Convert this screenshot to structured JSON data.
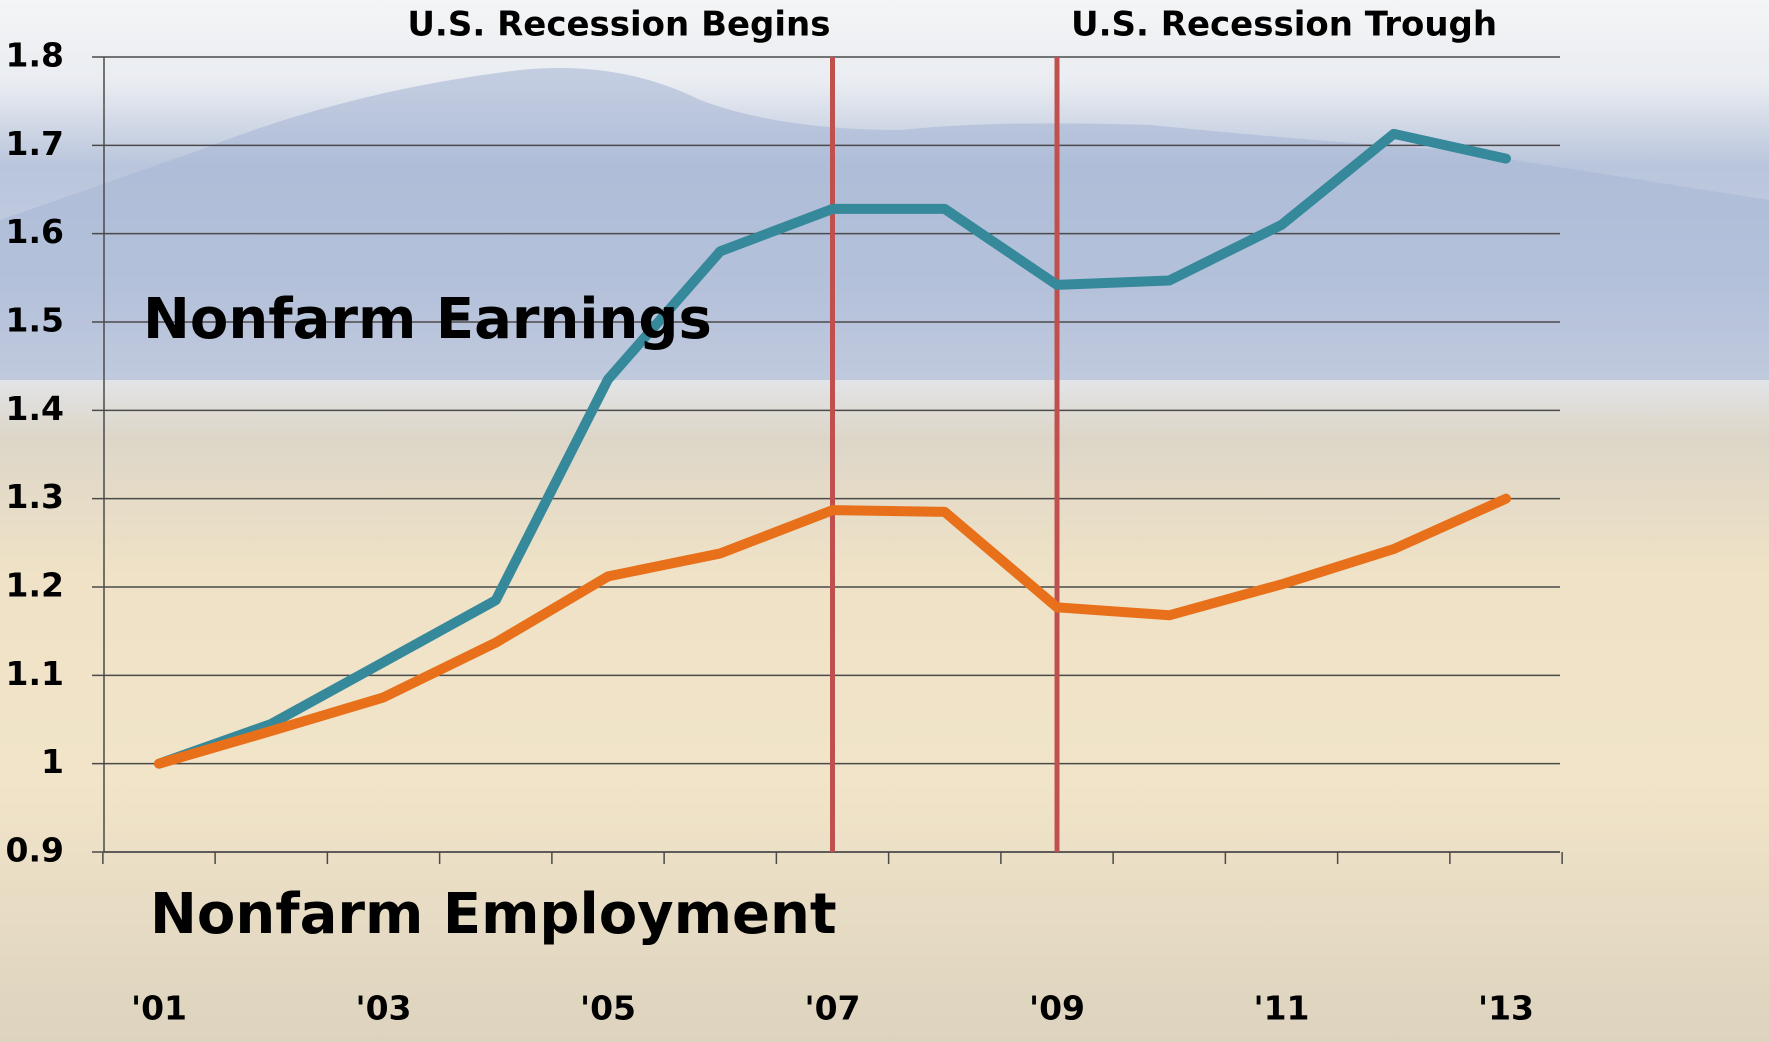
{
  "chart_data": {
    "type": "line",
    "categories": [
      "'01",
      null,
      "'03",
      null,
      "'05",
      null,
      "'07",
      null,
      "'09",
      null,
      "'11",
      null,
      "'13"
    ],
    "series": [
      {
        "name": "Nonfarm Earnings",
        "color": "#36899a",
        "values": [
          1.0,
          1.045,
          1.115,
          1.185,
          1.435,
          1.58,
          1.628,
          1.628,
          1.542,
          1.547,
          1.61,
          1.713,
          1.685
        ]
      },
      {
        "name": "Nonfarm Employment",
        "color": "#e8701a",
        "values": [
          1.0,
          1.037,
          1.075,
          1.137,
          1.212,
          1.238,
          1.287,
          1.285,
          1.177,
          1.168,
          1.203,
          1.243,
          1.3
        ]
      }
    ],
    "annotations": [
      {
        "label": "U.S. Recession Begins",
        "x": "'07"
      },
      {
        "label": "U.S. Recession Trough",
        "x": "'09"
      }
    ],
    "ylim": [
      0.9,
      1.8
    ],
    "yticks": [
      0.9,
      1,
      1.1,
      1.2,
      1.3,
      1.4,
      1.5,
      1.6,
      1.7,
      1.8
    ],
    "grid": true
  }
}
